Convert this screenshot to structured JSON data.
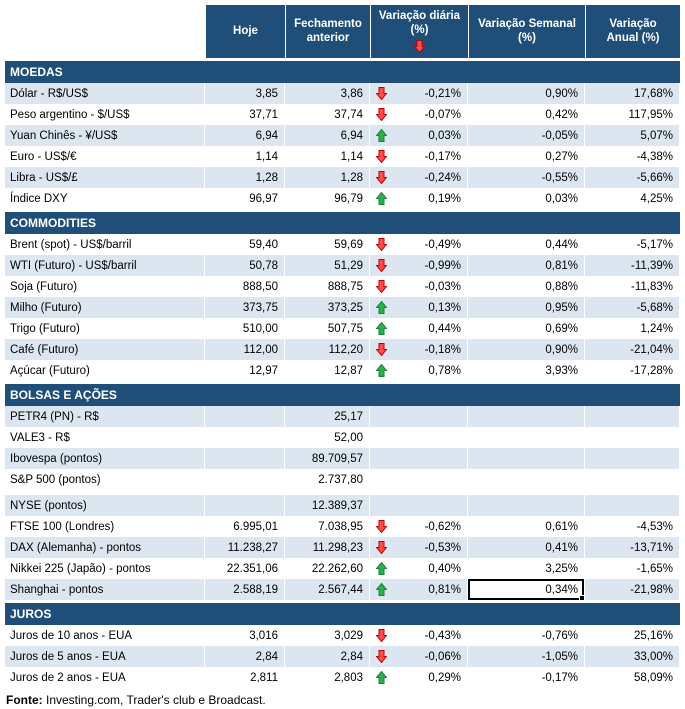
{
  "header": {
    "columns": [
      {
        "label": "Hoje"
      },
      {
        "label": "Fechamento anterior"
      },
      {
        "label": "Variação diária (%)",
        "icon": "down-arrow"
      },
      {
        "label": "Variação Semanal (%)"
      },
      {
        "label": "Variação Anual (%)"
      }
    ]
  },
  "sections": [
    {
      "title": "MOEDAS",
      "rows": [
        {
          "label": "Dólar - R$/US$",
          "hoje": "3,85",
          "fechamento": "3,86",
          "arrow": "down",
          "diaria": "-0,21%",
          "semanal": "0,90%",
          "anual": "17,68%"
        },
        {
          "label": "Peso argentino - $/US$",
          "hoje": "37,71",
          "fechamento": "37,74",
          "arrow": "down",
          "diaria": "-0,07%",
          "semanal": "0,42%",
          "anual": "117,95%"
        },
        {
          "label": "Yuan Chinês - ¥/US$",
          "hoje": "6,94",
          "fechamento": "6,94",
          "arrow": "up",
          "diaria": "0,03%",
          "semanal": "-0,05%",
          "anual": "5,07%"
        },
        {
          "label": "Euro - US$/€",
          "hoje": "1,14",
          "fechamento": "1,14",
          "arrow": "down",
          "diaria": "-0,17%",
          "semanal": "0,27%",
          "anual": "-4,38%"
        },
        {
          "label": "Libra - US$/£",
          "hoje": "1,28",
          "fechamento": "1,28",
          "arrow": "down",
          "diaria": "-0,24%",
          "semanal": "-0,55%",
          "anual": "-5,66%"
        },
        {
          "label": "Índice DXY",
          "hoje": "96,97",
          "fechamento": "96,79",
          "arrow": "up",
          "diaria": "0,19%",
          "semanal": "0,03%",
          "anual": "4,25%"
        }
      ]
    },
    {
      "title": "COMMODITIES",
      "rows": [
        {
          "label": "Brent (spot) - US$/barril",
          "hoje": "59,40",
          "fechamento": "59,69",
          "arrow": "down",
          "diaria": "-0,49%",
          "semanal": "0,44%",
          "anual": "-5,17%"
        },
        {
          "label": "WTI (Futuro) - US$/barril",
          "hoje": "50,78",
          "fechamento": "51,29",
          "arrow": "down",
          "diaria": "-0,99%",
          "semanal": "0,81%",
          "anual": "-11,39%"
        },
        {
          "label": "Soja (Futuro)",
          "hoje": "888,50",
          "fechamento": "888,75",
          "arrow": "down",
          "diaria": "-0,03%",
          "semanal": "0,88%",
          "anual": "-11,83%"
        },
        {
          "label": "Milho (Futuro)",
          "hoje": "373,75",
          "fechamento": "373,25",
          "arrow": "up",
          "diaria": "0,13%",
          "semanal": "0,95%",
          "anual": "-5,68%"
        },
        {
          "label": "Trigo (Futuro)",
          "hoje": "510,00",
          "fechamento": "507,75",
          "arrow": "up",
          "diaria": "0,44%",
          "semanal": "0,69%",
          "anual": "1,24%"
        },
        {
          "label": "Café (Futuro)",
          "hoje": "112,00",
          "fechamento": "112,20",
          "arrow": "down",
          "diaria": "-0,18%",
          "semanal": "0,90%",
          "anual": "-21,04%"
        },
        {
          "label": "Açúcar (Futuro)",
          "hoje": "12,97",
          "fechamento": "12,87",
          "arrow": "up",
          "diaria": "0,78%",
          "semanal": "3,93%",
          "anual": "-17,28%"
        }
      ]
    },
    {
      "title": "BOLSAS E AÇÕES",
      "rows": [
        {
          "label": "PETR4 (PN) - R$",
          "hoje": "",
          "fechamento": "25,17",
          "arrow": null,
          "diaria": "",
          "semanal": "",
          "anual": ""
        },
        {
          "label": "VALE3 - R$",
          "hoje": "",
          "fechamento": "52,00",
          "arrow": null,
          "diaria": "",
          "semanal": "",
          "anual": ""
        },
        {
          "label": "Ibovespa (pontos)",
          "hoje": "",
          "fechamento": "89.709,57",
          "arrow": null,
          "diaria": "",
          "semanal": "",
          "anual": ""
        },
        {
          "label": "S&P 500 (pontos)",
          "hoje": "",
          "fechamento": "2.737,80",
          "arrow": null,
          "diaria": "",
          "semanal": "",
          "anual": ""
        },
        {
          "label": "NYSE (pontos)",
          "hoje": "",
          "fechamento": "12.389,37",
          "arrow": null,
          "diaria": "",
          "semanal": "",
          "anual": "",
          "gap_before": true
        },
        {
          "label": "FTSE 100 (Londres)",
          "hoje": "6.995,01",
          "fechamento": "7.038,95",
          "arrow": "down",
          "diaria": "-0,62%",
          "semanal": "0,61%",
          "anual": "-4,53%"
        },
        {
          "label": "DAX (Alemanha) - pontos",
          "hoje": "11.238,27",
          "fechamento": "11.298,23",
          "arrow": "down",
          "diaria": "-0,53%",
          "semanal": "0,41%",
          "anual": "-13,71%"
        },
        {
          "label": "Nikkei 225 (Japão) - pontos",
          "hoje": "22.351,06",
          "fechamento": "22.262,60",
          "arrow": "up",
          "diaria": "0,40%",
          "semanal": "3,25%",
          "anual": "-1,65%"
        },
        {
          "label": "Shanghai - pontos",
          "hoje": "2.588,19",
          "fechamento": "2.567,44",
          "arrow": "up",
          "diaria": "0,81%",
          "semanal": "0,34%",
          "anual": "-21,98%",
          "selected_col": "semanal"
        }
      ]
    },
    {
      "title": "JUROS",
      "rows": [
        {
          "label": "Juros de 10 anos - EUA",
          "hoje": "3,016",
          "fechamento": "3,029",
          "arrow": "down",
          "diaria": "-0,43%",
          "semanal": "-0,76%",
          "anual": "25,16%"
        },
        {
          "label": "Juros de 5 anos - EUA",
          "hoje": "2,84",
          "fechamento": "2,84",
          "arrow": "down",
          "diaria": "-0,06%",
          "semanal": "-1,05%",
          "anual": "33,00%"
        },
        {
          "label": "Juros de 2 anos - EUA",
          "hoje": "2,811",
          "fechamento": "2,803",
          "arrow": "up",
          "diaria": "0,29%",
          "semanal": "-0,17%",
          "anual": "58,09%"
        }
      ]
    }
  ],
  "footer": {
    "label": "Fonte:",
    "text": " Investing.com, Trader's club e Broadcast."
  },
  "colors": {
    "header_bg": "#1F4E79",
    "row_shade": "#DCE6F1",
    "up_arrow": "#2DB04B",
    "down_arrow": "#FF4C4C",
    "selection_border": "#000000"
  }
}
